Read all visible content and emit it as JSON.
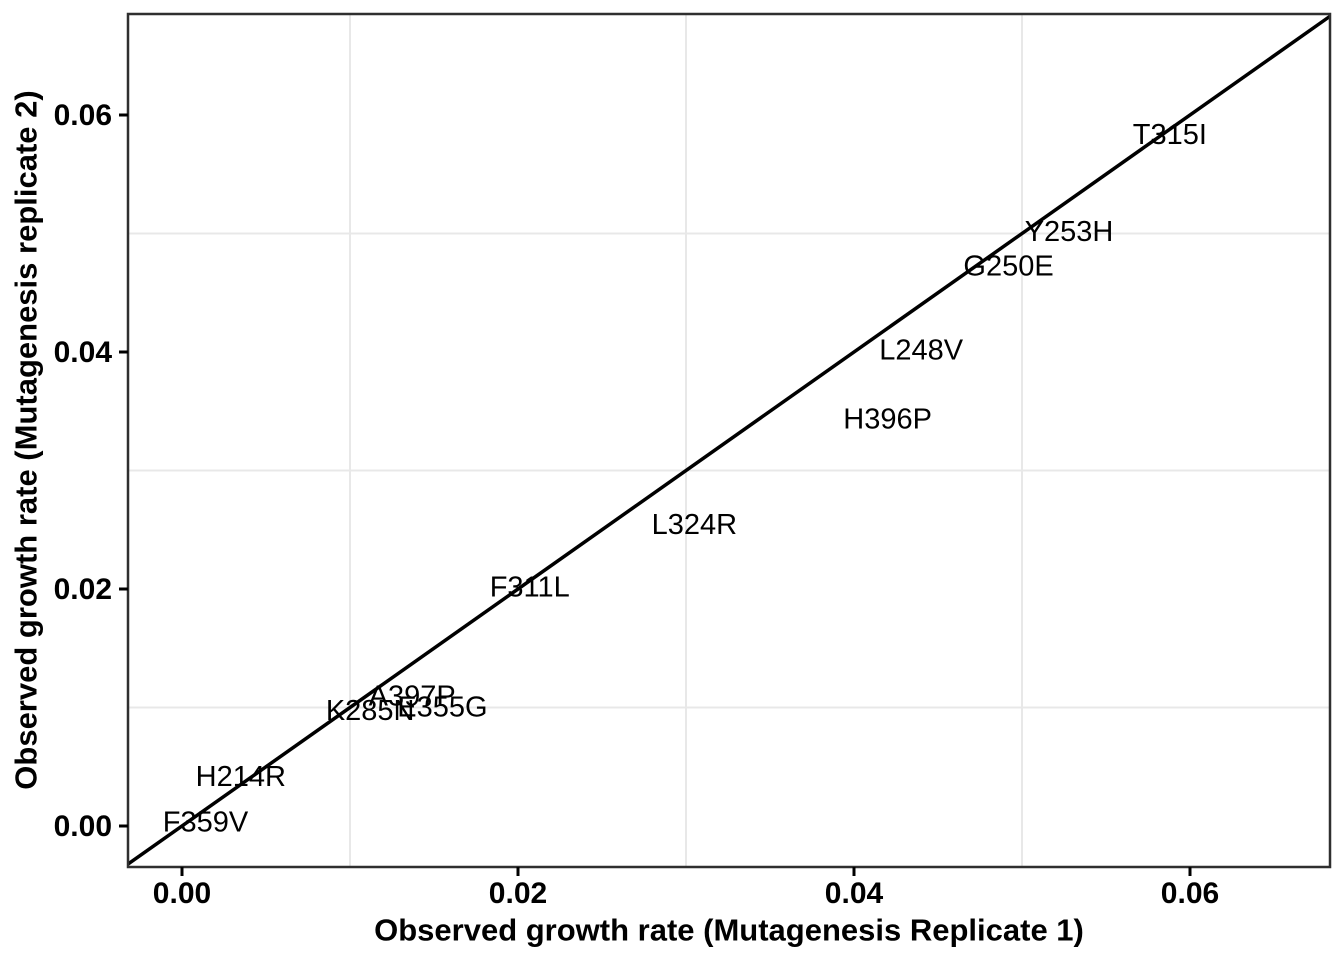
{
  "chart_data": {
    "type": "scatter",
    "subtype": "text-labeled-scatter",
    "title": "",
    "xlabel": "Observed growth rate (Mutagenesis Replicate 1)",
    "ylabel": "Observed growth rate (Mutagenesis replicate 2)",
    "xlim": [
      -0.0033,
      0.0684
    ],
    "ylim": [
      -0.0033,
      0.0685
    ],
    "grid": "minor-only",
    "legend": "none",
    "identity_line": true,
    "x_ticks": [
      {
        "value": 0.0,
        "label": "0.00"
      },
      {
        "value": 0.02,
        "label": "0.02"
      },
      {
        "value": 0.04,
        "label": "0.04"
      },
      {
        "value": 0.06,
        "label": "0.06"
      }
    ],
    "y_ticks": [
      {
        "value": 0.0,
        "label": "0.00"
      },
      {
        "value": 0.02,
        "label": "0.02"
      },
      {
        "value": 0.04,
        "label": "0.04"
      },
      {
        "value": 0.06,
        "label": "0.06"
      }
    ],
    "minor_gridlines_x": [
      0.01,
      0.03,
      0.05
    ],
    "minor_gridlines_y": [
      0.01,
      0.03,
      0.05
    ],
    "points": [
      {
        "label": "F359V",
        "x": 0.0014,
        "y": 0.0004
      },
      {
        "label": "H214R",
        "x": 0.0035,
        "y": 0.0042
      },
      {
        "label": "K285N",
        "x": 0.0112,
        "y": 0.0098
      },
      {
        "label": "A397P",
        "x": 0.0137,
        "y": 0.011
      },
      {
        "label": "E355G",
        "x": 0.0155,
        "y": 0.0101
      },
      {
        "label": "F311L",
        "x": 0.0207,
        "y": 0.0202
      },
      {
        "label": "L324R",
        "x": 0.0305,
        "y": 0.0255
      },
      {
        "label": "H396P",
        "x": 0.042,
        "y": 0.0344
      },
      {
        "label": "L248V",
        "x": 0.044,
        "y": 0.0402
      },
      {
        "label": "G250E",
        "x": 0.0492,
        "y": 0.0473
      },
      {
        "label": "Y253H",
        "x": 0.0528,
        "y": 0.0502
      },
      {
        "label": "T315I",
        "x": 0.0588,
        "y": 0.0584
      }
    ],
    "colors": {
      "background": "#ffffff",
      "panel_background": "#ffffff",
      "grid": "#e8e8e8",
      "panel_border": "#2f2f2f",
      "identity_line": "#000000",
      "tick": "#000000",
      "tick_label": "#000000",
      "axis_title": "#000000",
      "point_label": "#000000"
    }
  }
}
